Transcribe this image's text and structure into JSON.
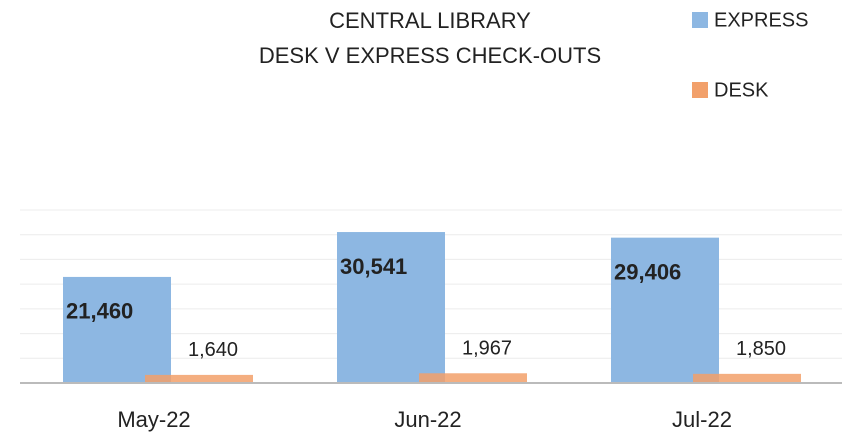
{
  "chart_data": {
    "type": "bar",
    "title": "CENTRAL LIBRARY",
    "subtitle": "DESK V EXPRESS CHECK-OUTS",
    "categories": [
      "May-22",
      "Jun-22",
      "Jul-22"
    ],
    "series": [
      {
        "name": "EXPRESS",
        "color": "#8db7e2",
        "values": [
          21460,
          30541,
          29406
        ],
        "value_labels": [
          "21,460",
          "30,541",
          "29,406"
        ]
      },
      {
        "name": "DESK",
        "color": "#f2a06a",
        "values": [
          1640,
          1967,
          1850
        ],
        "value_labels": [
          "1,640",
          "1,967",
          "1,850"
        ]
      }
    ],
    "ylim": [
      0,
      35000
    ],
    "yticks": [
      0,
      5000,
      10000,
      15000,
      20000,
      25000,
      30000,
      35000
    ],
    "grid": true,
    "legend": "top-right"
  }
}
